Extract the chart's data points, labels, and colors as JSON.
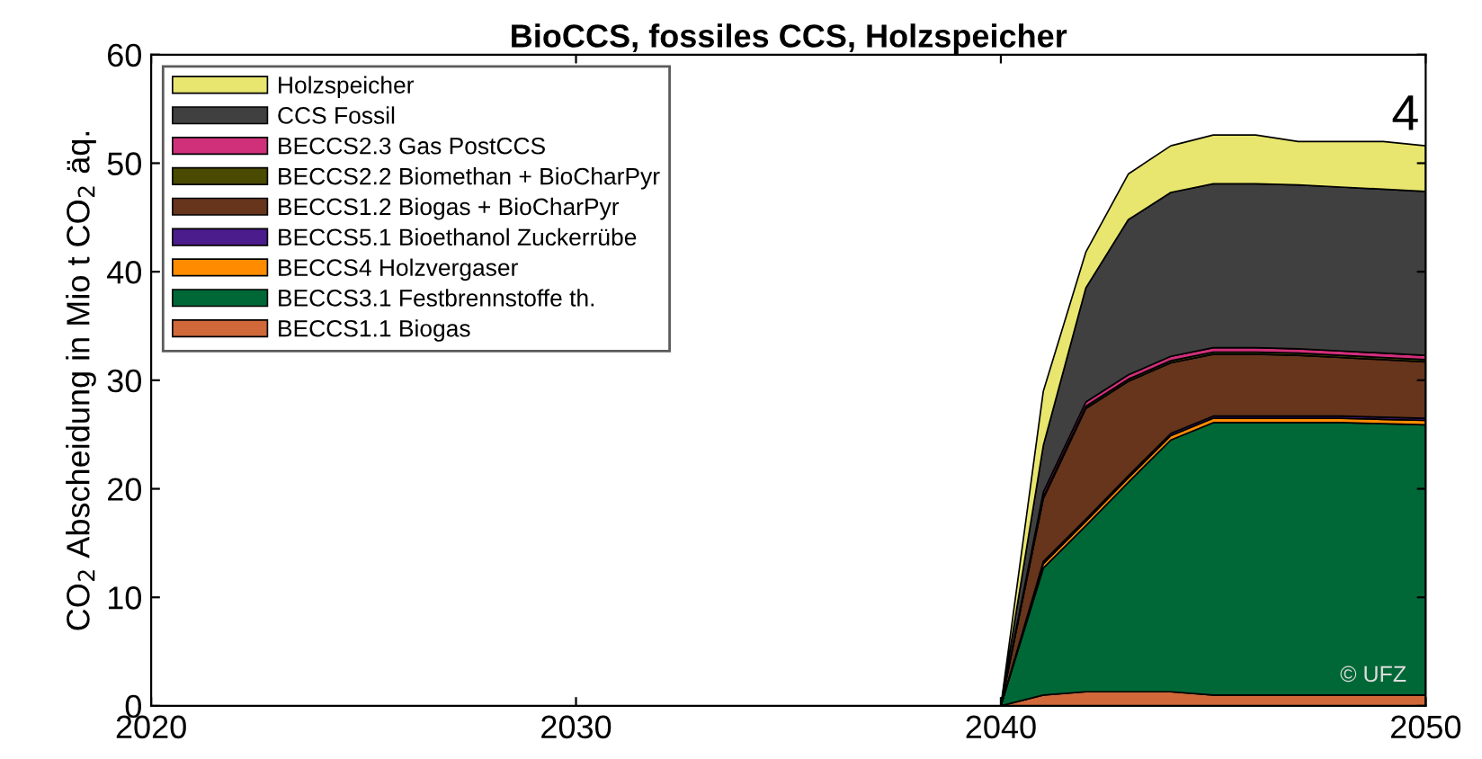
{
  "chart_data": {
    "type": "area",
    "stacked": true,
    "title": "BioCCS, fossiles CCS, Holzspeicher",
    "ylabel": "CO$_{2}$ Abscheidung in Mio t CO$_{2}$ äq.",
    "x": [
      2020,
      2040,
      2041,
      2042,
      2043,
      2044,
      2045,
      2046,
      2047,
      2048,
      2049,
      2050
    ],
    "xlim": [
      2020,
      2050
    ],
    "xticks": [
      2020,
      2030,
      2040,
      2050
    ],
    "ylim": [
      0,
      60
    ],
    "yticks": [
      0,
      10,
      20,
      30,
      40,
      50,
      60
    ],
    "grid": false,
    "legend": "top left",
    "series": [
      {
        "name": "BECCS1.1 Biogas",
        "color": "#d0683a",
        "values": [
          0,
          0,
          1.0,
          1.3,
          1.3,
          1.3,
          1.0,
          1.0,
          1.0,
          1.0,
          1.0,
          1.0
        ]
      },
      {
        "name": "BECCS3.1 Festbrennstoffe th.",
        "color": "#006837",
        "values": [
          0,
          0,
          11.7,
          15.3,
          19.3,
          23.2,
          25.1,
          25.1,
          25.1,
          25.1,
          25.0,
          24.9
        ]
      },
      {
        "name": "BECCS4 Holzvergaser",
        "color": "#ff8c00",
        "values": [
          0,
          0,
          0.4,
          0.4,
          0.4,
          0.4,
          0.4,
          0.4,
          0.4,
          0.4,
          0.4,
          0.4
        ]
      },
      {
        "name": "BECCS5.1 Bioethanol Zuckerrübe",
        "color": "#4b1c8c",
        "values": [
          0,
          0,
          0.2,
          0.2,
          0.2,
          0.2,
          0.2,
          0.2,
          0.2,
          0.2,
          0.2,
          0.2
        ]
      },
      {
        "name": "BECCS1.2 Biogas + BioCharPyr",
        "color": "#66351c",
        "values": [
          0,
          0,
          5.8,
          10.2,
          8.7,
          6.5,
          5.7,
          5.7,
          5.6,
          5.4,
          5.3,
          5.2
        ]
      },
      {
        "name": "BECCS2.2 Biomethan + BioCharPyr",
        "color": "#4a4a00",
        "values": [
          0,
          0,
          0.2,
          0.2,
          0.2,
          0.2,
          0.2,
          0.2,
          0.2,
          0.2,
          0.2,
          0.2
        ]
      },
      {
        "name": "BECCS2.3 Gas PostCCS",
        "color": "#d02f7a",
        "values": [
          0,
          0,
          0.4,
          0.4,
          0.4,
          0.4,
          0.4,
          0.4,
          0.4,
          0.4,
          0.4,
          0.4
        ]
      },
      {
        "name": "CCS Fossil",
        "color": "#404040",
        "values": [
          0,
          0,
          4.3,
          10.5,
          14.3,
          15.1,
          15.1,
          15.1,
          15.1,
          15.1,
          15.1,
          15.1
        ]
      },
      {
        "name": "Holzspeicher",
        "color": "#e8e66e",
        "values": [
          0,
          0,
          5.0,
          3.3,
          4.2,
          4.3,
          4.5,
          4.5,
          4.0,
          4.2,
          4.4,
          4.2
        ]
      }
    ],
    "annotations": [
      "4",
      "© UFZ"
    ]
  }
}
